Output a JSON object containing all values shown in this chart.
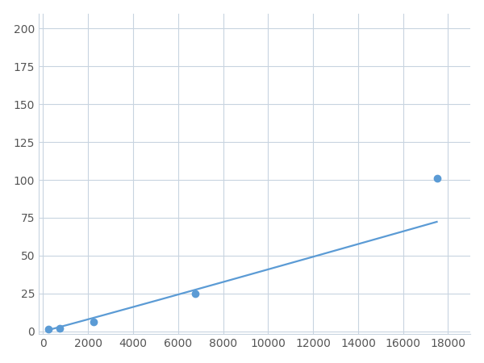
{
  "x_points": [
    250,
    750,
    2250,
    6750,
    17500
  ],
  "y_points": [
    1.5,
    2.0,
    6.5,
    25.0,
    101.0
  ],
  "line_color": "#5b9bd5",
  "marker_color": "#5b9bd5",
  "marker_size": 6,
  "line_width": 1.6,
  "xlim": [
    -200,
    19000
  ],
  "ylim": [
    -2,
    210
  ],
  "xticks": [
    0,
    2000,
    4000,
    6000,
    8000,
    10000,
    12000,
    14000,
    16000,
    18000
  ],
  "yticks": [
    0,
    25,
    50,
    75,
    100,
    125,
    150,
    175,
    200
  ],
  "grid_color": "#c8d4e0",
  "background_color": "#ffffff",
  "figure_bg": "#ffffff",
  "tick_fontsize": 10,
  "tick_color": "#555555"
}
